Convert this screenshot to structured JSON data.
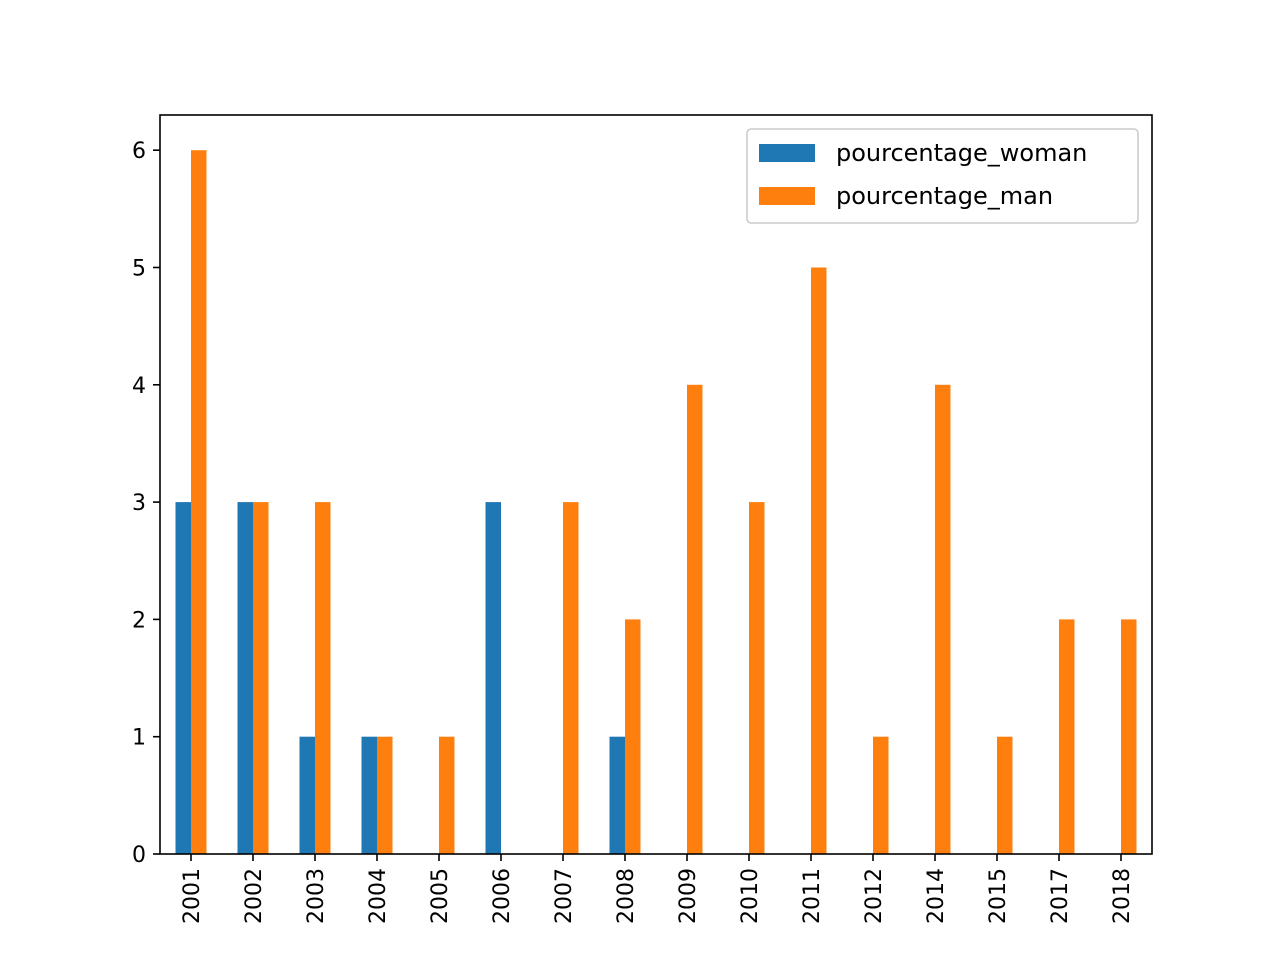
{
  "chart_data": {
    "type": "bar",
    "categories": [
      "2001",
      "2002",
      "2003",
      "2004",
      "2005",
      "2006",
      "2007",
      "2008",
      "2009",
      "2010",
      "2011",
      "2012",
      "2014",
      "2015",
      "2017",
      "2018"
    ],
    "series": [
      {
        "name": "pourcentage_woman",
        "color": "#1f77b4",
        "values": [
          3,
          3,
          1,
          1,
          0,
          3,
          0,
          1,
          0,
          0,
          0,
          0,
          0,
          0,
          0,
          0
        ]
      },
      {
        "name": "pourcentage_man",
        "color": "#ff7f0e",
        "values": [
          6,
          3,
          3,
          1,
          1,
          0,
          3,
          2,
          4,
          3,
          5,
          1,
          4,
          1,
          2,
          2
        ]
      }
    ],
    "yticks": [
      "0",
      "1",
      "2",
      "3",
      "4",
      "5",
      "6"
    ],
    "ylim": [
      0,
      6.3
    ],
    "legend_position": "upper right",
    "grid": false
  }
}
